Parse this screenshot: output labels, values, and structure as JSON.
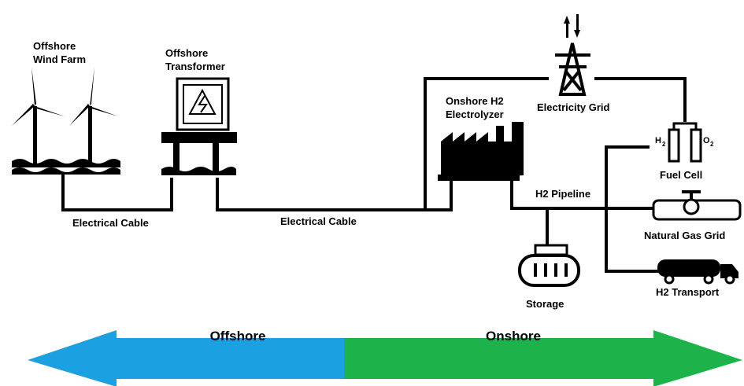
{
  "nodes": [
    {
      "label": [
        "Offshore",
        "Wind Farm"
      ]
    },
    {
      "label": [
        "Offshore",
        "Transformer"
      ]
    },
    {
      "label": [
        "Onshore H2",
        "Electrolyzer"
      ]
    },
    {
      "label": [
        "Electricity Grid"
      ]
    },
    {
      "label": [
        "Fuel Cell"
      ]
    },
    {
      "label": [
        "Natural Gas Grid"
      ]
    },
    {
      "label": [
        "H2 Transport"
      ]
    },
    {
      "label": [
        "Storage"
      ]
    }
  ],
  "connections": [
    {
      "label": "Electrical Cable"
    },
    {
      "label": "Electrical Cable"
    },
    {
      "label": "H2 Pipeline"
    }
  ],
  "fuel_cell_symbols": [
    {
      "text": "H",
      "sub": "2"
    },
    {
      "text": "O",
      "sub": "2"
    }
  ],
  "regions": [
    {
      "label": "Offshore"
    },
    {
      "label": "Onshore"
    }
  ]
}
